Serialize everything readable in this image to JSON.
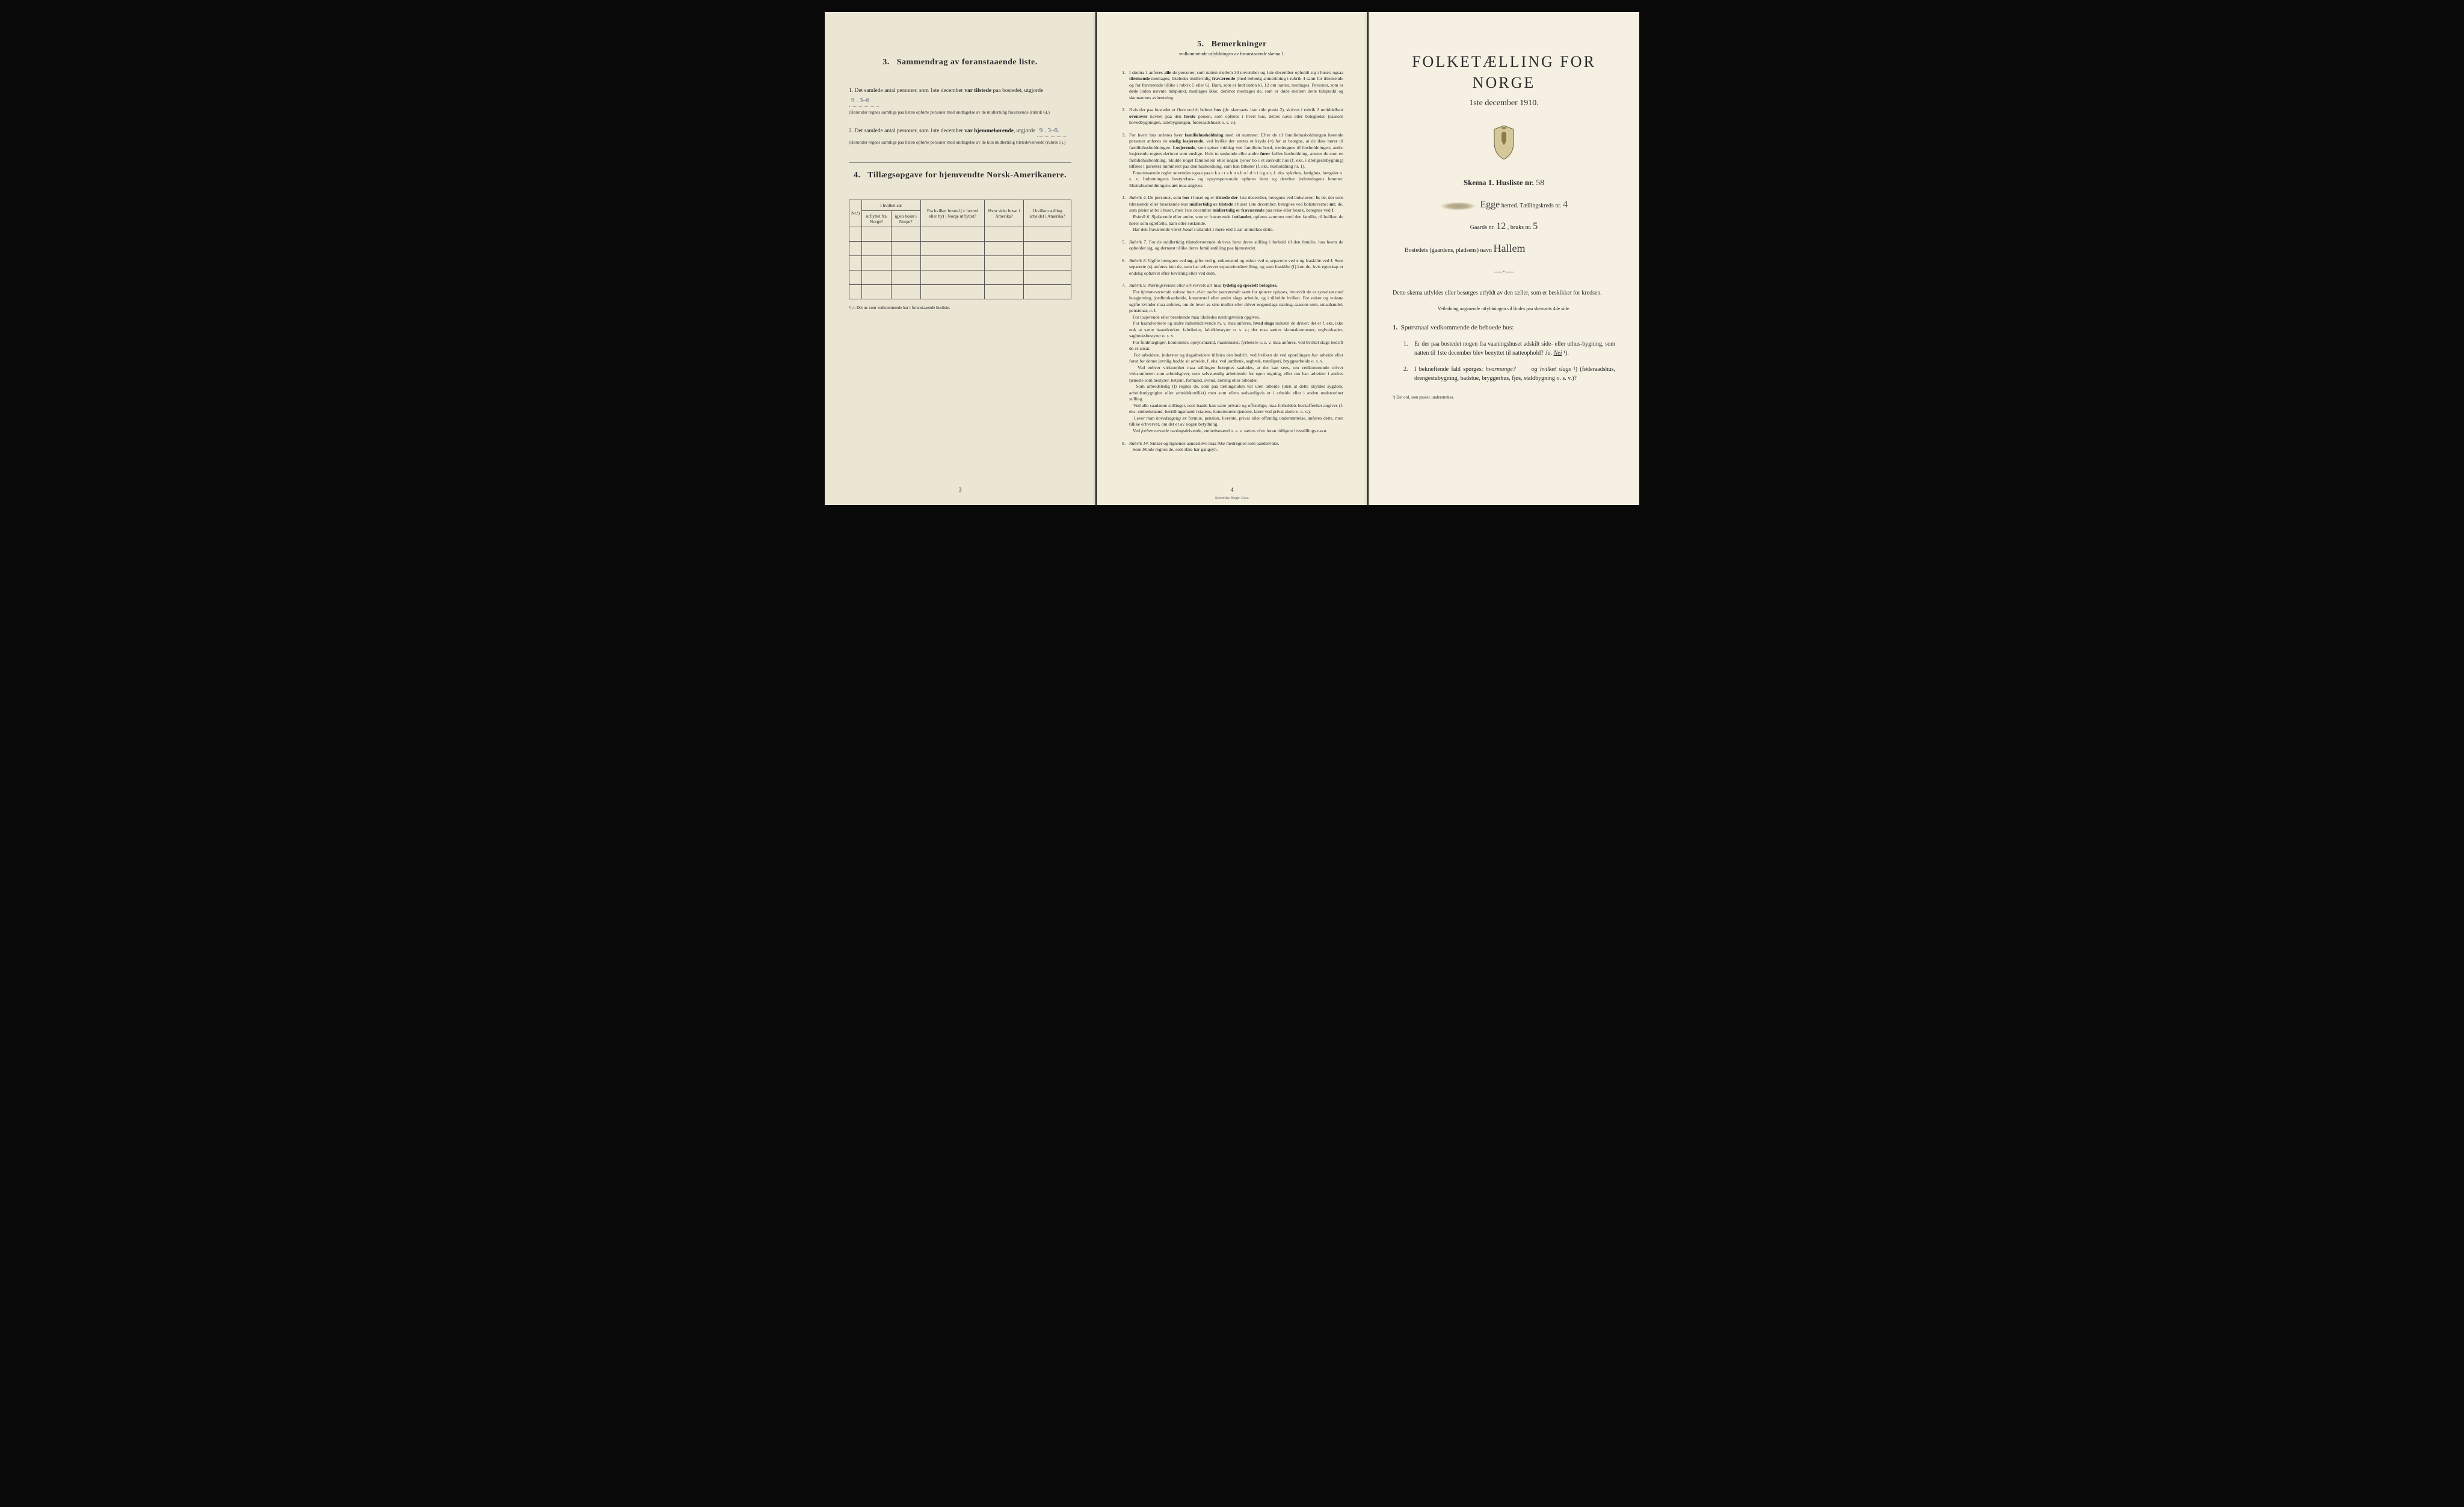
{
  "leftPage": {
    "section3": {
      "number": "3.",
      "title": "Sammendrag av foranstaaende liste.",
      "item1_pre": "1.  Det samlede antal personer, som 1ste december ",
      "item1_bold": "var tilstede",
      "item1_post": " paa bostedet, utgjorde ",
      "item1_value": "9 .   3–6",
      "item1_note": "(Herunder regnes samtlige paa listen opførte personer med undtagelse av de midlertidig fraværende (rubrik 6).)",
      "item2_pre": "2.  Det samlede antal personer, som 1ste december ",
      "item2_bold": "var hjemmehørende",
      "item2_post": ", utgjorde ",
      "item2_value": "9 .  3–6.",
      "item2_note": "(Herunder regnes samtlige paa listen opførte personer med undtagelse av de kun midlertidig tilstedeværende (rubrik 5).)"
    },
    "section4": {
      "number": "4.",
      "title": "Tillægsopgave for hjemvendte Norsk-Amerikanere.",
      "headers": [
        "Nr.¹)",
        "I hvilket aar utflyttet fra Norge?",
        "igjen bosat i Norge?",
        "Fra hvilket bosted (ɔ: herred eller by) i Norge utflyttet?",
        "Hvor sidst bosat i Amerika?",
        "I hvilken stilling arbeidet i Amerika?"
      ],
      "rows": 5,
      "footnote": "¹) ɔ: Det nr. som vedkommende har i foranstaaende husliste."
    },
    "pagenum": "3"
  },
  "middlePage": {
    "number": "5.",
    "title": "Bemerkninger",
    "subtitle": "vedkommende utfyldningen av foranstaaende skema 1.",
    "items": [
      {
        "n": "1.",
        "t": "I skema 1 anføres <b>alle</b> de personer, som natten mellem 30 november og 1ste december opholdt sig i huset; ogsaa <b>tilreisende</b> medtages; likeledes midlertidig <b>fraværende</b> (med behørig anmerkning i rubrik 4 samt for tilreisende og for fraværende tillike i rubrik 5 eller 6). Barn, som er født inden kl. 12 om natten, medtages. Personer, som er døde inden nævnte tidspunkt, medtages ikke; derimot medtages de, som er døde mellem dette tidspunkt og skemaernes avhentning."
      },
      {
        "n": "2.",
        "t": "Hvis der paa bostedet er flere end ét beboet <b>hus</b> (jfr. skemaets 1ste side punkt 2), skrives i rubrik 2 umiddelbart <b>ovenover</b> navnet paa den <b>første</b> person, som opføres i hvert hus, dettes navn eller betegnelse (saasom hovedbygningen, sidebygningen, føderaadshuset o. s. v.)."
      },
      {
        "n": "3.",
        "t": "For hvert hus anføres hver <b>familiehusholdning</b> med sit nummer. Efter de til familiehusholdningen hørende personer anføres de <b>enslig losjerende</b>, ved hvilke der sættes et kryds (×) for at betegne, at de ikke hører til familiehusholdningen. <b>Losjerende</b>, som spiser middag ved familiens bord, medregnes til husholdningen; andre losjerende regnes derimot som enslige. Hvis to søskende eller andre <b>fører</b> fælles husholdning, ansees de som en familiehusholdning. Skulde noget familielem eller nogen tjener bo i et særskilt hus (f. eks. i drengestubygning) tilføies i parentes nummeret paa den husholdning, som han tilhører (f. eks. husholdning nr. 1).<br>&nbsp;&nbsp;&nbsp;Foranstaaende regler anvendes ogsaa paa e k s t r a h u s h o l d n i n g e r, f. eks. sykehus, fattighus, fængsler o. s. v. Indretningens bestyrelses- og opsynspersonale opføres først og derefter indretningens lemmer. Ekstrahusholdningens <b>art</b> maa angives."
      },
      {
        "n": "4.",
        "t": "<i>Rubrik 4.</i> De personer, som <b>bor</b> i huset og er <b>tilstede der</b> 1ste december, betegnes ved bokstaven: <b>b</b>; de, der som tilreisende eller besøkende kun <b>midlertidig er tilstede</b> i huset 1ste december, betegnes ved bokstaverne: <b>mt</b>; de, som pleier at bo i huset, men 1ste december <b>midlertidig er fraværende</b> paa reise eller besøk, betegnes ved <b>f</b>.<br>&nbsp;&nbsp;&nbsp;<i>Rubrik 6.</i> Sjøfarende eller andre, som er fraværende i <b>utlandet</b>, opføres sammen med den familie, til hvilken de hører som egtefælle, barn eller søskende.<br>&nbsp;&nbsp;&nbsp;Har den fraværende været <i>bosat</i> i utlandet i mere end 1 aar anmerkes dette."
      },
      {
        "n": "5.",
        "t": "<i>Rubrik 7.</i> For de midlertidig tilstedeværende skrives først deres stilling i forhold til den familie, hos hvem de opholder sig, og dernæst tillike deres familiestilling paa hjemstedet."
      },
      {
        "n": "6.",
        "t": "<i>Rubrik 8.</i> Ugifte betegnes ved <b>ug</b>, gifte ved <b>g</b>, enkemænd og enker ved <b>e</b>, separerte ved <b>s</b> og fraskilte ved <b>f</b>. Som separerte (s) anføres kun de, som har erhvervet separationsbevilling, og som fraskilte (f) kun de, hvis egteskap er endelig ophævet efter bevilling eller ved dom."
      },
      {
        "n": "7.",
        "t": "<i>Rubrik 9. Næringsveiens eller erhvervets art</i> maa <b>tydelig og specielt betegnes.</b><br>&nbsp;&nbsp;&nbsp;For <i>hjemmeværende voksne barn eller andre paarørende</i> samt for <i>tjenere</i> oplyses, hvorvidt de er sysselsat med husgjerning, jordbruksarbeide, kreaturstel eller andet slags arbeide, og i tilfælde hvilket. For enker og voksne ugifte kvinder maa anføres, om de lever av sine midler eller driver nogenslags næring, saasom søm, smaahandel, pensionat, o. l.<br>&nbsp;&nbsp;&nbsp;For losjerende eller besøkende maa likeledes næringsveien opgives.<br>&nbsp;&nbsp;&nbsp;For haandverkere og andre industridrivende m. v. maa anføres, <b>hvad slags</b> industri de driver; det er f. eks. ikke nok at sætte haandverker, fabrikeier, fabrikbestyrer o. s. v.; der maa sættes skomakermester, teglverkseier, sagbruksbestyrer o. s. v.<br>&nbsp;&nbsp;&nbsp;For fuldmægtiger, kontorister, opsynsmænd, maskinister, fyrbøtere o. s. v. maa anføres, ved hvilket slags bedrift de er ansat.<br>&nbsp;&nbsp;&nbsp;For arbeidere, inderster og dagarbeidere tilføies den bedrift, ved hvilken de ved optællingen <i>har</i> arbeide eller forut for denne jevnlig <i>hadde</i> sit arbeide, f. eks. ved jordbruk, sagbruk, træsliperi, bryggearbeide o. s. v.<br>&nbsp;&nbsp;&nbsp;Ved enhver virksomhet maa stillingen betegnes saaledes, at det kan sees, om vedkommende driver virksomheten som arbeidsgiver, som selvstændig arbeidende for egen regning, eller om han arbeider i andres tjeneste som bestyrer, betjent, formand, svend, lærling eller arbeider.<br>&nbsp;&nbsp;&nbsp;Som arbeidsledig (l) regnes de, som paa tællingstiden var uten arbeide (uten at dette skyldes sygdom, arbeidsudygtighet eller arbeidskonflikt) men som ellers sedvanligvis er i arbeide eller i anden underordnet stilling.<br>&nbsp;&nbsp;&nbsp;Ved alle saadanne stillinger, som baade kan være private og offentlige, maa forholdets beskaffenhet angives (f. eks. embedsmand, bestillingsmand i statens, kommunens tjeneste, lærer ved privat skole o. s. v.).<br>&nbsp;&nbsp;&nbsp;Lever man <i>hovedsagelig</i> av formue, pension, livrente, privat eller offentlig understøttelse, anføres dette, men tillike erhvervet, om det er av nogen betydning.<br>&nbsp;&nbsp;&nbsp;Ved <i>forhenværende</i> næringsdrivende, embedsmænd o. s. v. sættes «fv» foran tidligere livsstillings navn."
      },
      {
        "n": "8.",
        "t": "<i>Rubrik 14.</i> Sinker og lignende aandssløve maa <i>ikke</i> medregnes som aandssvake.<br>&nbsp;&nbsp;&nbsp;Som <i>blinde</i> regnes de, som ikke har gangsyn."
      }
    ],
    "pagenum": "4",
    "imprint": "Steen'ske Bogtr. Kr.a."
  },
  "rightPage": {
    "bigTitle": "FOLKETÆLLING FOR NORGE",
    "dateLine": "1ste december 1910.",
    "skemaLabel": "Skema 1.  Husliste nr.",
    "skemaValue": "58",
    "herredValue": "Egge",
    "herredLabel": " herred.   Tællingskreds nr. ",
    "kredsValue": "4",
    "gaardsLabel": "Gaards nr. ",
    "gaardsValue": "12",
    "bruksLabel": ",  bruks nr. ",
    "bruksValue": "5",
    "bostedLabel": "Bostedets (gaardens, pladsens) navn ",
    "bostedValue": "Hallem",
    "bodyText": "Dette skema utfyldes eller besørges utfyldt av den tæller, som er beskikket for kredsen.",
    "smallCenter": "Veiledning angaaende utfyldningen vil findes paa skemaets 4de side.",
    "qHeading_n": "1.",
    "qHeading": "Spørsmaal vedkommende de beboede hus:",
    "q1_n": "1.",
    "q1": "Er der paa bostedet nogen fra vaaningshuset adskilt side- eller uthus-bygning, som natten til 1ste december blev benyttet til natteophold?   <i>Ja.  <u>Nei</u></i> ¹).",
    "q2_n": "2.",
    "q2": "I bekræftende fald spørges: <i>hvormange?</i> &nbsp;&nbsp;&nbsp;&nbsp; <i>og hvilket slags</i> ¹) (føderaadshus, drengestubygning, badstue, bryggerhus, fjøs, staldbygning o. s. v.)?",
    "footnote": "¹) Det ord, som passer, understrekes."
  }
}
